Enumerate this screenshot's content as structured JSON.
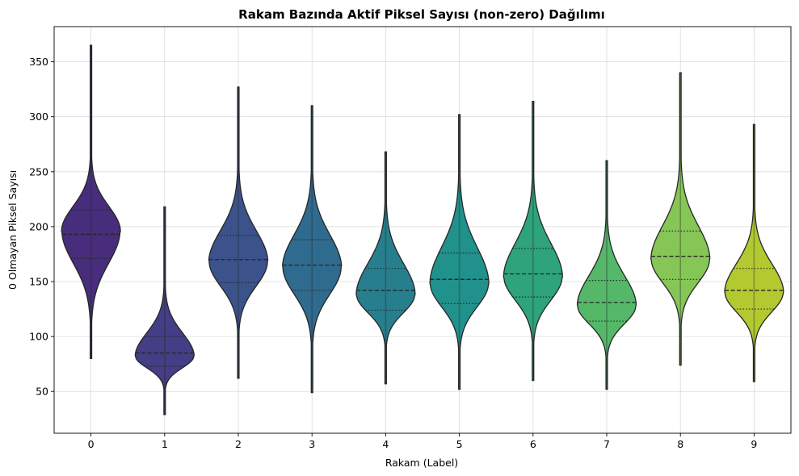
{
  "chart_data": {
    "type": "violin",
    "title": "Rakam Bazında Aktif Piksel Sayısı (non-zero) Dağılımı",
    "xlabel": "Rakam (Label)",
    "ylabel": "0 Olmayan Piksel Sayısı",
    "ylim": [
      12,
      382
    ],
    "yticks": [
      50,
      100,
      150,
      200,
      250,
      300,
      350
    ],
    "grid": true,
    "inner": "quartile",
    "categories": [
      "0",
      "1",
      "2",
      "3",
      "4",
      "5",
      "6",
      "7",
      "8",
      "9"
    ],
    "violins": [
      {
        "label": "0",
        "color": "#472d7b",
        "min": 80,
        "q1": 171,
        "median": 193,
        "q3": 215,
        "max": 365,
        "mode": 196
      },
      {
        "label": "1",
        "color": "#433e85",
        "min": 29,
        "q1": 73,
        "median": 85,
        "q3": 100,
        "max": 218,
        "mode": 82
      },
      {
        "label": "2",
        "color": "#3b528b",
        "min": 62,
        "q1": 149,
        "median": 170,
        "q3": 192,
        "max": 327,
        "mode": 168
      },
      {
        "label": "3",
        "color": "#2f6b8e",
        "min": 49,
        "q1": 142,
        "median": 165,
        "q3": 188,
        "max": 310,
        "mode": 163
      },
      {
        "label": "4",
        "color": "#277f8e",
        "min": 57,
        "q1": 124,
        "median": 142,
        "q3": 162,
        "max": 268,
        "mode": 138
      },
      {
        "label": "5",
        "color": "#21918c",
        "min": 52,
        "q1": 130,
        "median": 152,
        "q3": 176,
        "max": 302,
        "mode": 148
      },
      {
        "label": "6",
        "color": "#2ea37c",
        "min": 60,
        "q1": 136,
        "median": 157,
        "q3": 180,
        "max": 314,
        "mode": 154
      },
      {
        "label": "7",
        "color": "#54b868",
        "min": 52,
        "q1": 114,
        "median": 131,
        "q3": 151,
        "max": 260,
        "mode": 128
      },
      {
        "label": "8",
        "color": "#86c656",
        "min": 74,
        "q1": 152,
        "median": 173,
        "q3": 196,
        "max": 340,
        "mode": 170
      },
      {
        "label": "9",
        "color": "#b2c930",
        "min": 59,
        "q1": 125,
        "median": 142,
        "q3": 162,
        "max": 293,
        "mode": 140
      }
    ]
  }
}
